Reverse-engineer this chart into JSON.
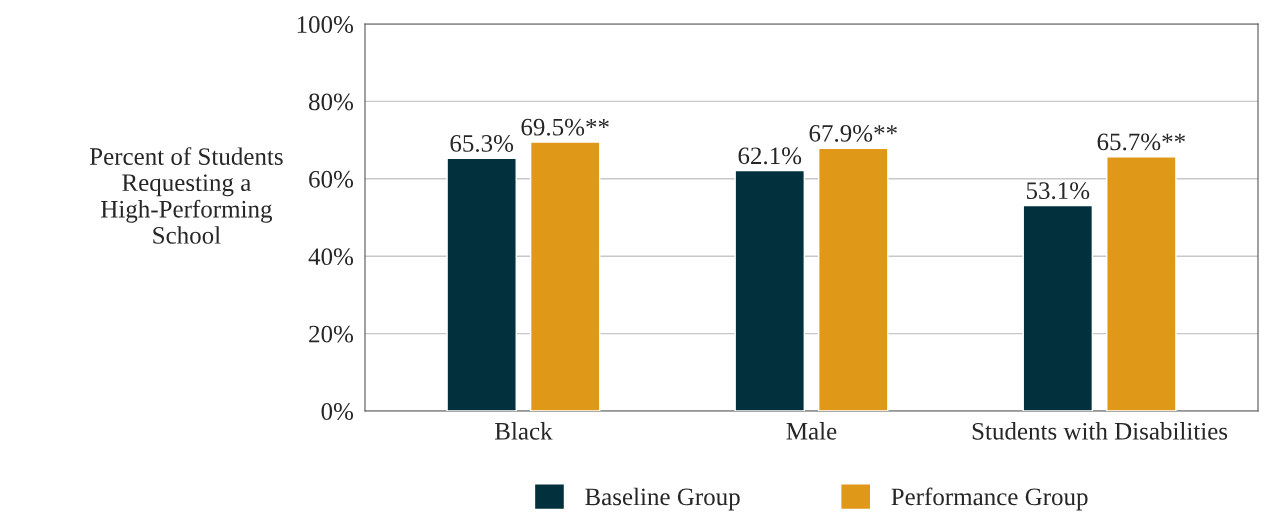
{
  "chart_data": {
    "type": "bar",
    "ylabel": "Percent of Students\nRequesting a\nHigh-Performing\nSchool",
    "categories": [
      "Black",
      "Male",
      "Students with Disabilities"
    ],
    "series": [
      {
        "name": "Baseline Group",
        "color": "#02303c",
        "values": [
          65.3,
          62.1,
          53.1
        ],
        "value_labels": [
          "65.3%",
          "62.1%",
          "53.1%"
        ]
      },
      {
        "name": "Performance Group",
        "color": "#e09818",
        "values": [
          69.5,
          67.9,
          65.7
        ],
        "value_labels": [
          "69.5%**",
          "67.9%**",
          "65.7%**"
        ]
      }
    ],
    "ylim": [
      0,
      100
    ],
    "yticks": [
      {
        "value": 0,
        "label": "0%"
      },
      {
        "value": 20,
        "label": "20%"
      },
      {
        "value": 40,
        "label": "40%"
      },
      {
        "value": 60,
        "label": "60%"
      },
      {
        "value": 80,
        "label": "80%"
      },
      {
        "value": 100,
        "label": "100%"
      }
    ],
    "grid": "y",
    "legend": "bottom"
  }
}
